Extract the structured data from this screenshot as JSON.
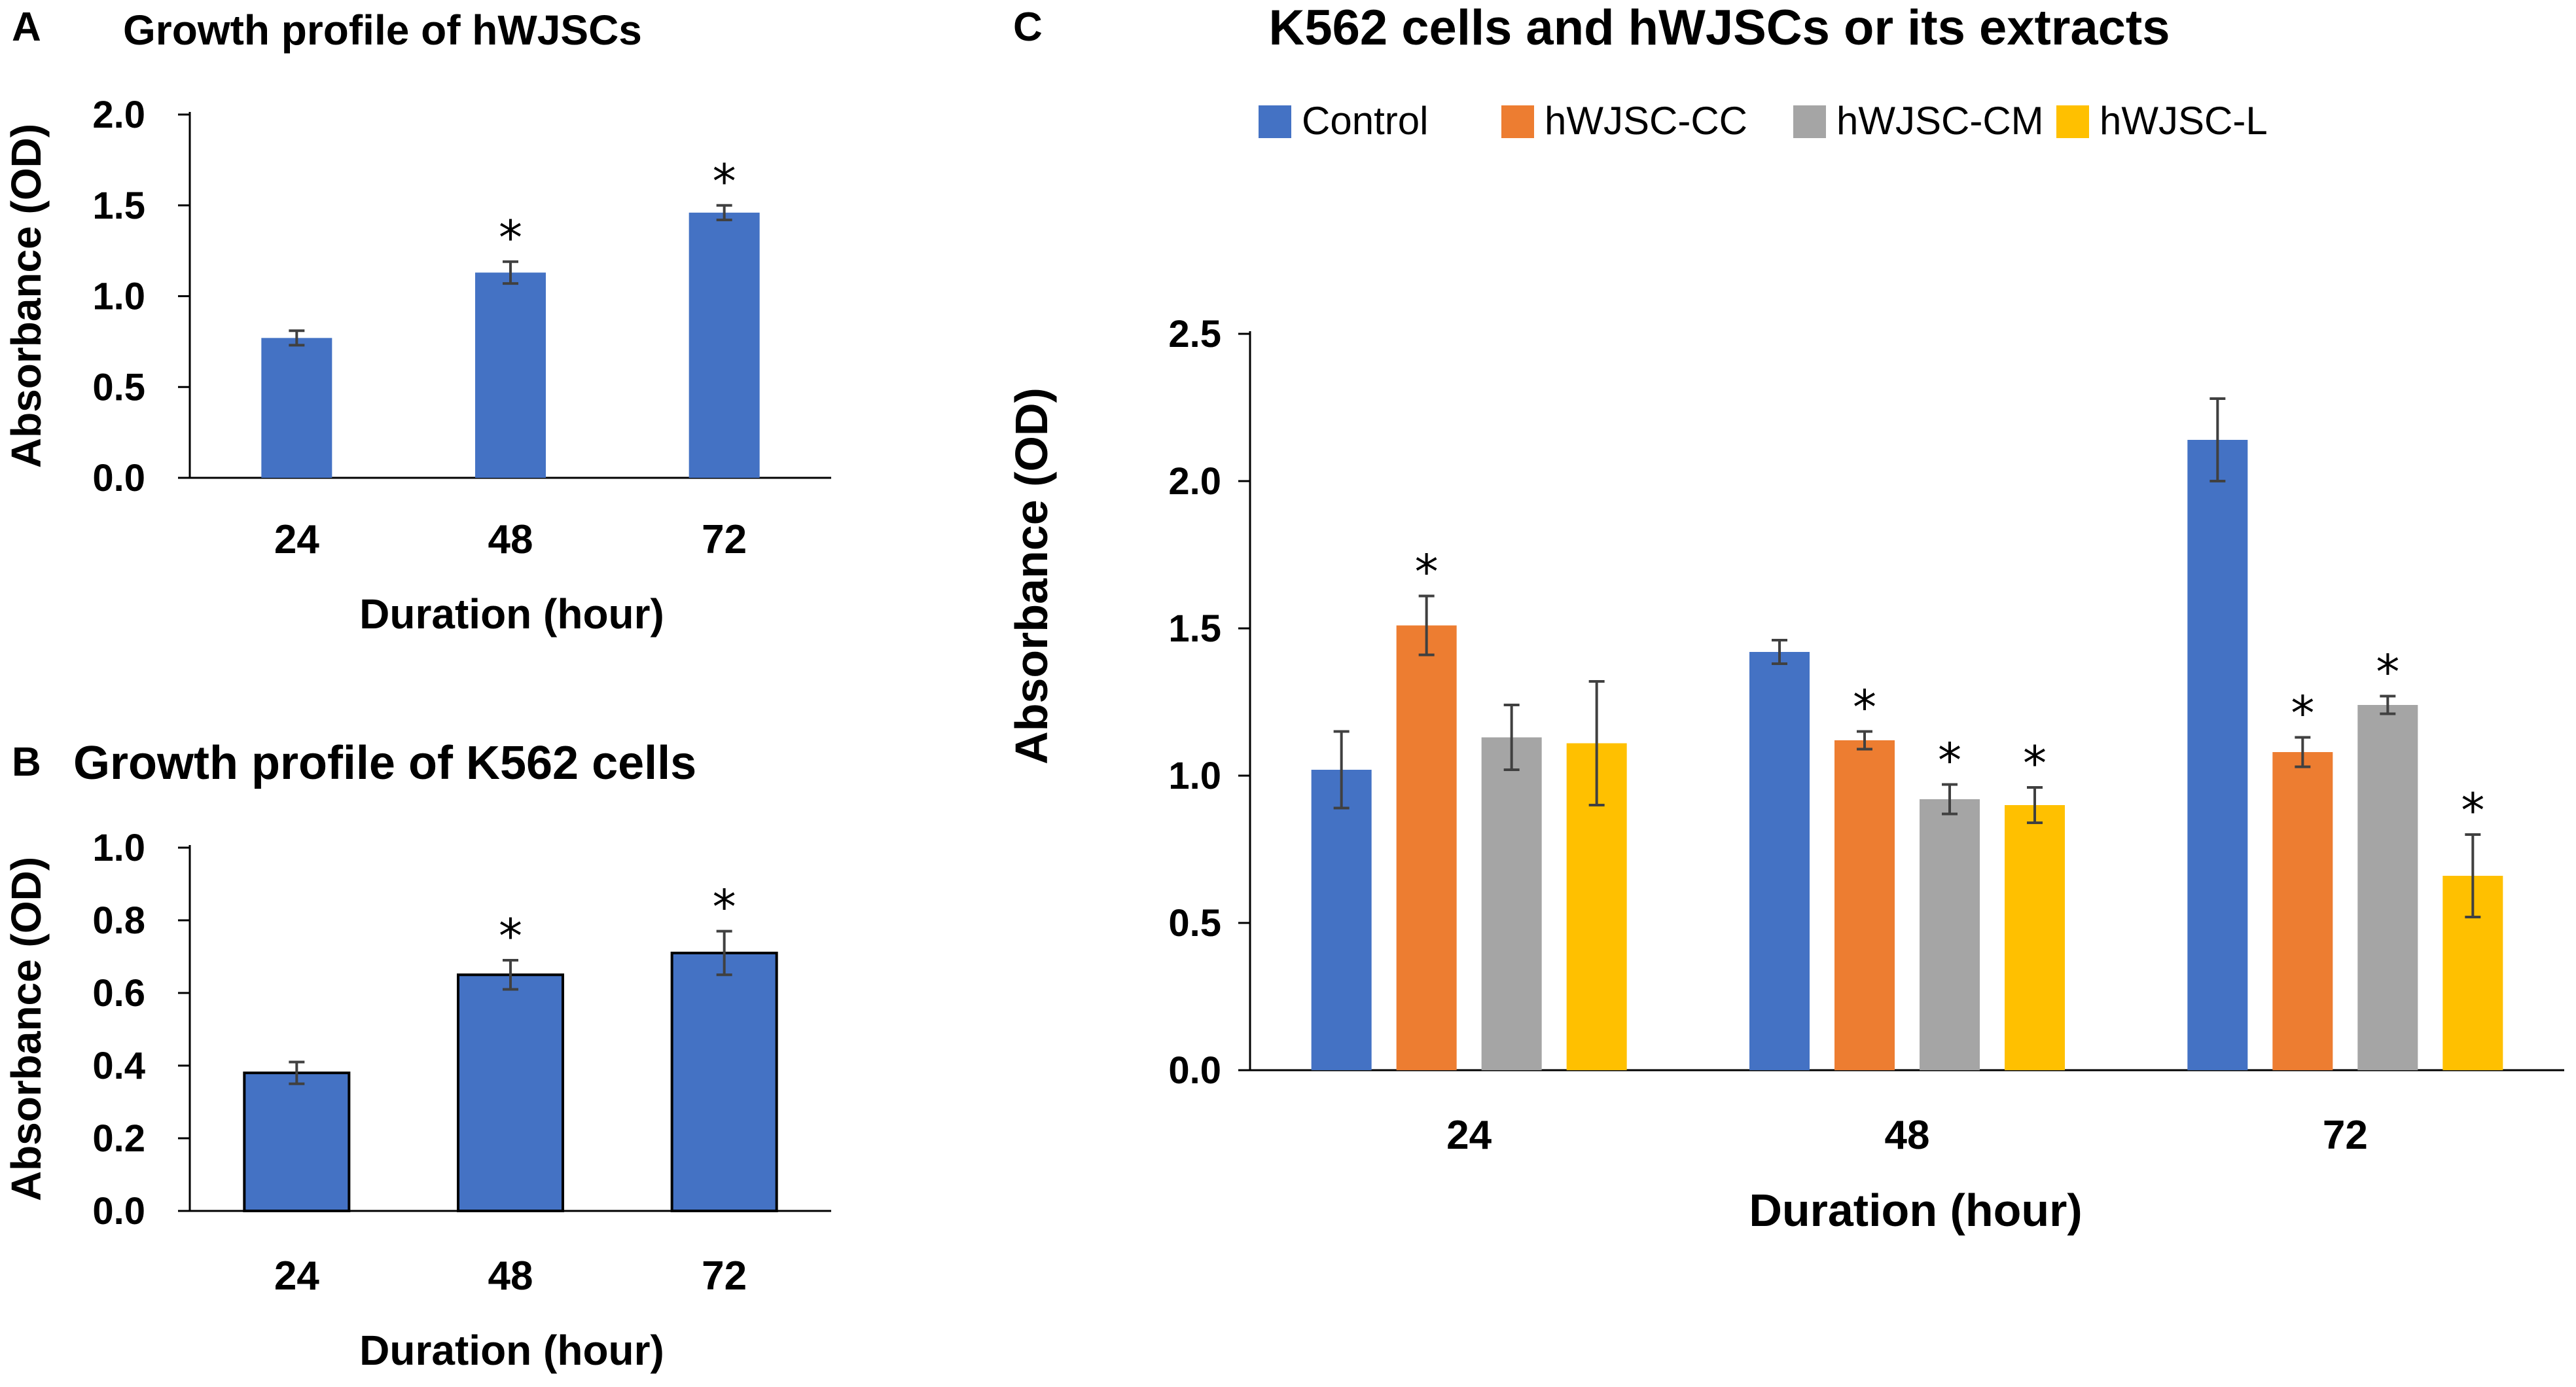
{
  "chart_data": [
    {
      "panel": "A",
      "type": "bar",
      "title": "Growth profile of hWJSCs",
      "xlabel": "Duration (hour)",
      "ylabel": "Absorbance (OD)",
      "categories": [
        "24",
        "48",
        "72"
      ],
      "series": [
        {
          "name": "hWJSCs",
          "color": "#4472c4",
          "values": [
            0.77,
            1.13,
            1.46
          ],
          "errors": [
            0.04,
            0.06,
            0.04
          ],
          "significant": [
            false,
            true,
            true
          ]
        }
      ],
      "ylim": [
        0,
        2.0
      ],
      "yticks": [
        "0.0",
        "0.5",
        "1.0",
        "1.5",
        "2.0"
      ],
      "marker": "*",
      "bar_outline": false,
      "legend": false
    },
    {
      "panel": "B",
      "type": "bar",
      "title": "Growth profile of K562 cells",
      "xlabel": "Duration (hour)",
      "ylabel": "Absorbance (OD)",
      "categories": [
        "24",
        "48",
        "72"
      ],
      "series": [
        {
          "name": "K562 cells",
          "color": "#4472c4",
          "values": [
            0.38,
            0.65,
            0.71
          ],
          "errors": [
            0.03,
            0.04,
            0.06
          ],
          "significant": [
            false,
            true,
            true
          ]
        }
      ],
      "ylim": [
        0,
        1.0
      ],
      "yticks": [
        "0.0",
        "0.2",
        "0.4",
        "0.6",
        "0.8",
        "1.0"
      ],
      "marker": "*",
      "bar_outline": true,
      "legend": false
    },
    {
      "panel": "C",
      "type": "bar",
      "title": "K562 cells and hWJSCs or its extracts",
      "xlabel": "Duration (hour)",
      "ylabel": "Absorbance (OD)",
      "categories": [
        "24",
        "48",
        "72"
      ],
      "series": [
        {
          "name": "Control",
          "color": "#4472c4",
          "values": [
            1.02,
            1.42,
            2.14
          ],
          "errors": [
            0.13,
            0.04,
            0.14
          ],
          "significant": [
            false,
            false,
            false
          ]
        },
        {
          "name": "hWJSC-CC",
          "color": "#ed7d31",
          "values": [
            1.51,
            1.12,
            1.08
          ],
          "errors": [
            0.1,
            0.03,
            0.05
          ],
          "significant": [
            true,
            true,
            true
          ]
        },
        {
          "name": "hWJSC-CM",
          "color": "#a5a5a5",
          "values": [
            1.13,
            0.92,
            1.24
          ],
          "errors": [
            0.11,
            0.05,
            0.03
          ],
          "significant": [
            false,
            true,
            true
          ]
        },
        {
          "name": "hWJSC-L",
          "color": "#ffc000",
          "values": [
            1.11,
            0.9,
            0.66
          ],
          "errors": [
            0.21,
            0.06,
            0.14
          ],
          "significant": [
            false,
            true,
            true
          ]
        }
      ],
      "ylim": [
        0,
        2.5
      ],
      "yticks": [
        "0.0",
        "0.5",
        "1.0",
        "1.5",
        "2.0",
        "2.5"
      ],
      "marker": "*",
      "bar_outline": false,
      "legend": true,
      "legend_position": "top"
    }
  ]
}
